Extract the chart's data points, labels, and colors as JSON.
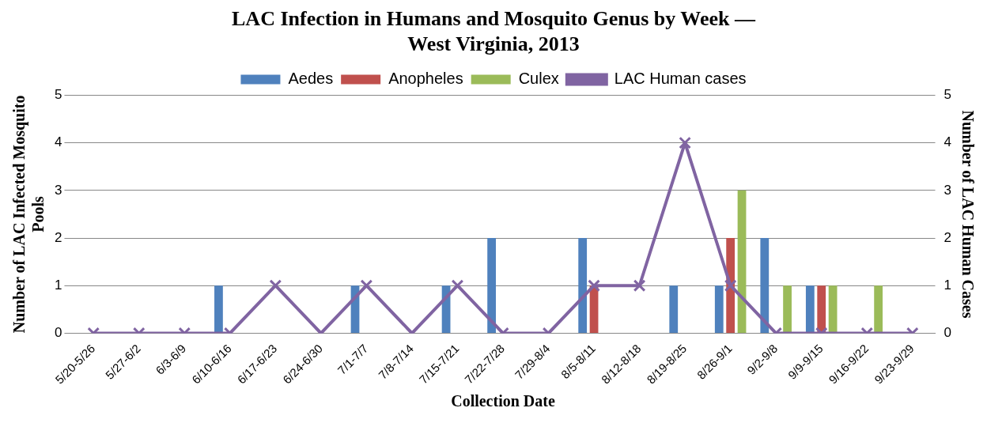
{
  "chart_data": {
    "type": "bar",
    "title": "LAC Infection in Humans and Mosquito Genus by Week — West Virginia, 2013",
    "xlabel": "Collection Date",
    "ylabel": "Number of LAC Infected Mosquito Pools",
    "y2label": "Number of LAC Human Cases",
    "categories": [
      "5/20-5/26",
      "5/27-6/2",
      "6/3-6/9",
      "6/10-6/16",
      "6/17-6/23",
      "6/24-6/30",
      "7/1-7/7",
      "7/8-7/14",
      "7/15-7/21",
      "7/22-7/28",
      "7/29-8/4",
      "8/5-8/11",
      "8/12-8/18",
      "8/19-8/25",
      "8/26-9/1",
      "9/2-9/8",
      "9/9-9/15",
      "9/16-9/22",
      "9/23-9/29"
    ],
    "series": [
      {
        "name": "Aedes",
        "color": "#4f81bd",
        "values": [
          0,
          0,
          0,
          1,
          0,
          0,
          1,
          0,
          1,
          2,
          0,
          2,
          0,
          1,
          1,
          2,
          1,
          0,
          0
        ]
      },
      {
        "name": "Anopheles",
        "color": "#c0504d",
        "values": [
          0,
          0,
          0,
          0,
          0,
          0,
          0,
          0,
          0,
          0,
          0,
          1,
          0,
          0,
          2,
          0,
          1,
          0,
          0
        ]
      },
      {
        "name": "Culex",
        "color": "#9bbb59",
        "values": [
          0,
          0,
          0,
          0,
          0,
          0,
          0,
          0,
          0,
          0,
          0,
          0,
          0,
          0,
          3,
          1,
          1,
          1,
          0
        ]
      },
      {
        "name": "LAC Human cases",
        "type": "line",
        "axis": "y2",
        "color": "#8064a2",
        "values": [
          0,
          0,
          0,
          0,
          1,
          0,
          1,
          0,
          1,
          0,
          0,
          1,
          1,
          4,
          1,
          0,
          0,
          0,
          0
        ]
      }
    ],
    "ylim": [
      0,
      5
    ],
    "yticks": [
      0,
      1,
      2,
      3,
      4,
      5
    ],
    "y2lim": [
      0,
      5
    ],
    "y2ticks": [
      0,
      1,
      2,
      3,
      4,
      5
    ],
    "grid": "y",
    "legend": "top",
    "marker": "cross",
    "line_style": "solid"
  }
}
